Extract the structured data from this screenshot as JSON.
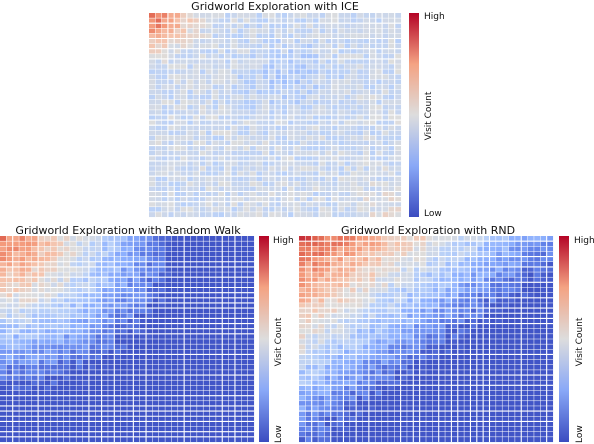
{
  "chart_data": [
    {
      "type": "heatmap",
      "title": "Gridworld Exploration with ICE",
      "colorbar": {
        "label": "Visit Count",
        "high": "High",
        "low": "Low"
      },
      "grid_size": 40,
      "pattern": "near-uniform coverage; slightly higher in the top-left corner and along the bottom-right edge",
      "colormap": "coolwarm"
    },
    {
      "type": "heatmap",
      "title": "Gridworld Exploration with Random Walk",
      "colorbar": {
        "label": "Visit Count",
        "high": "High",
        "low": "Low"
      },
      "grid_size": 40,
      "pattern": "high visits concentrated in the top-left, decaying quickly; the right and bottom are barely visited",
      "colormap": "coolwarm"
    },
    {
      "type": "heatmap",
      "title": "Gridworld Exploration with RND",
      "colorbar": {
        "label": "Visit Count",
        "high": "High",
        "low": "Low"
      },
      "grid_size": 40,
      "pattern": "high visits in the top-left, decaying diagonally; the bottom-right is barely visited",
      "colormap": "coolwarm"
    }
  ]
}
